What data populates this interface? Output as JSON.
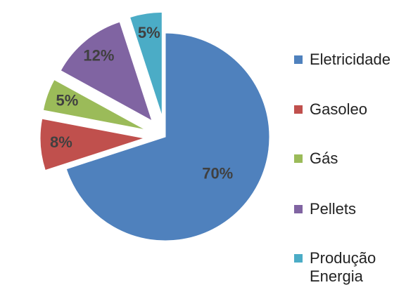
{
  "chart_data": {
    "type": "pie",
    "categories": [
      "Eletricidade",
      "Gasoleo",
      "Gás",
      "Pellets",
      "Produção Energia"
    ],
    "values": [
      70,
      8,
      5,
      12,
      5
    ],
    "value_labels": [
      "70%",
      "8%",
      "5%",
      "12%",
      "5%"
    ],
    "colors": [
      "#4f81bd",
      "#c0504d",
      "#9bbb59",
      "#8064a2",
      "#4bacc6"
    ],
    "legend": "right"
  }
}
